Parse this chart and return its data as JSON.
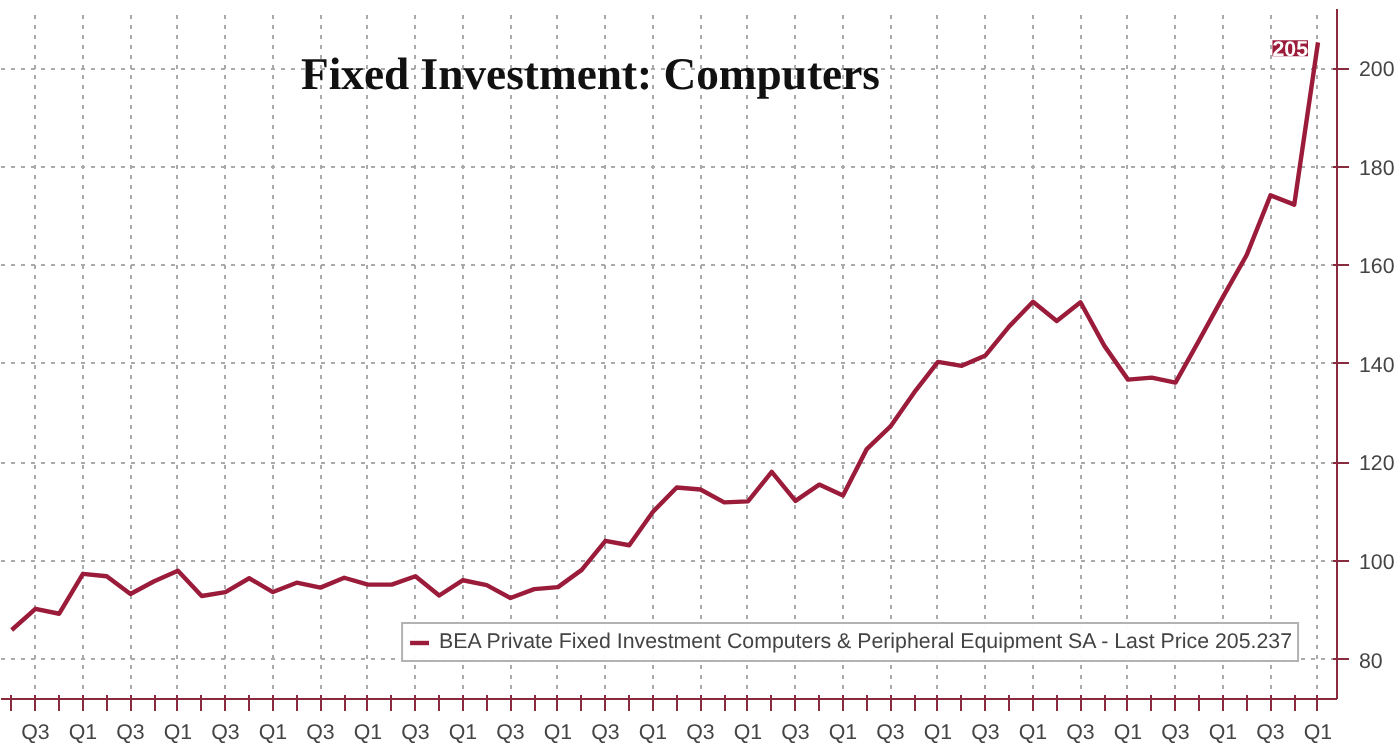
{
  "chart_data": {
    "type": "line",
    "title": "Fixed Investment: Computers",
    "categories": [
      null,
      "Q3",
      null,
      "Q1",
      null,
      "Q3",
      null,
      "Q1",
      null,
      "Q3",
      null,
      "Q1",
      null,
      "Q3",
      null,
      "Q1",
      null,
      "Q3",
      null,
      "Q1",
      null,
      "Q3",
      null,
      "Q1",
      null,
      "Q3",
      null,
      "Q1",
      null,
      "Q3",
      null,
      "Q1",
      null,
      "Q3",
      null,
      "Q1",
      null,
      "Q3",
      null,
      "Q1",
      null,
      "Q3",
      null,
      "Q1",
      null,
      "Q3",
      null,
      "Q1",
      null,
      "Q3",
      null,
      "Q1",
      null,
      "Q3",
      null,
      "Q1"
    ],
    "series": [
      {
        "name": "BEA Private Fixed Investment Computers & Peripheral Equipment SA - Last Price 205.237",
        "color": "#9b1b3a",
        "values": [
          86,
          90.3,
          89.3,
          97.4,
          96.9,
          93.3,
          95.9,
          98.0,
          92.9,
          93.7,
          96.5,
          93.7,
          95.6,
          94.6,
          96.6,
          95.2,
          95.2,
          96.9,
          93.0,
          96.1,
          95.1,
          92.5,
          94.3,
          94.7,
          98.2,
          104.1,
          103.2,
          110,
          114.9,
          114.5,
          111.9,
          112.1,
          118.1,
          112.2,
          115.5,
          113.3,
          122.7,
          127.3,
          134.2,
          140.4,
          139.6,
          141.7,
          147.6,
          152.6,
          148.7,
          152.5,
          143.7,
          136.8,
          137.2,
          136.2,
          144.8,
          153.6,
          162.1,
          174.2,
          172.3,
          205.237
        ],
        "value_labels": [
          null,
          null,
          null,
          null,
          null,
          null,
          null,
          null,
          null,
          null,
          null,
          null,
          null,
          null,
          null,
          null,
          null,
          null,
          null,
          null,
          null,
          null,
          null,
          null,
          null,
          null,
          null,
          null,
          null,
          null,
          null,
          null,
          null,
          null,
          null,
          null,
          null,
          null,
          null,
          null,
          null,
          null,
          null,
          null,
          null,
          null,
          null,
          null,
          null,
          null,
          null,
          null,
          null,
          null,
          null,
          "205"
        ]
      }
    ],
    "ylim": [
      72,
      212
    ],
    "yticks": [
      80,
      100,
      120,
      140,
      160,
      180,
      200
    ],
    "grid": true,
    "legend": "bottom right",
    "marker": "none",
    "line_style": "solid"
  }
}
